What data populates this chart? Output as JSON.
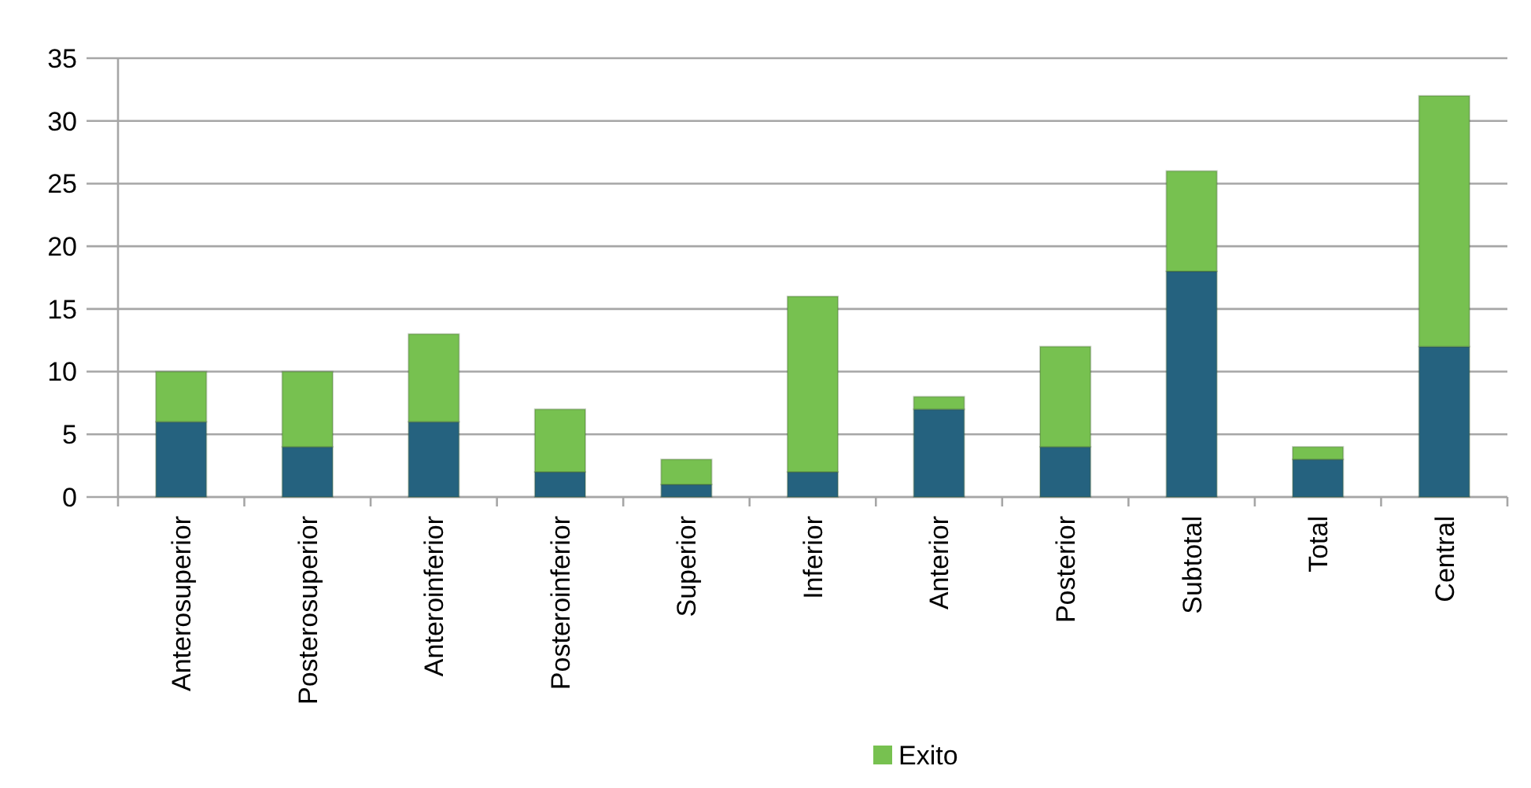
{
  "chart_data": {
    "type": "bar",
    "stacked": true,
    "categories": [
      "Anterosuperior",
      "Posterosuperior",
      "Anteroinferior",
      "Posteroinferior",
      "Superior",
      "Inferior",
      "Anterior",
      "Posterior",
      "Subtotal",
      "Total",
      "Central"
    ],
    "series": [
      {
        "color": "#25627f",
        "values": [
          6,
          4,
          6,
          2,
          1,
          2,
          7,
          4,
          18,
          3,
          12
        ]
      },
      {
        "name": "Exito",
        "color": "#77c150",
        "values": [
          4,
          6,
          7,
          5,
          2,
          14,
          1,
          8,
          8,
          1,
          20
        ]
      }
    ],
    "ylim": [
      0,
      35
    ],
    "yticks": [
      0,
      5,
      10,
      15,
      20,
      25,
      30,
      35
    ],
    "grid": "y",
    "legend": "bottom"
  }
}
